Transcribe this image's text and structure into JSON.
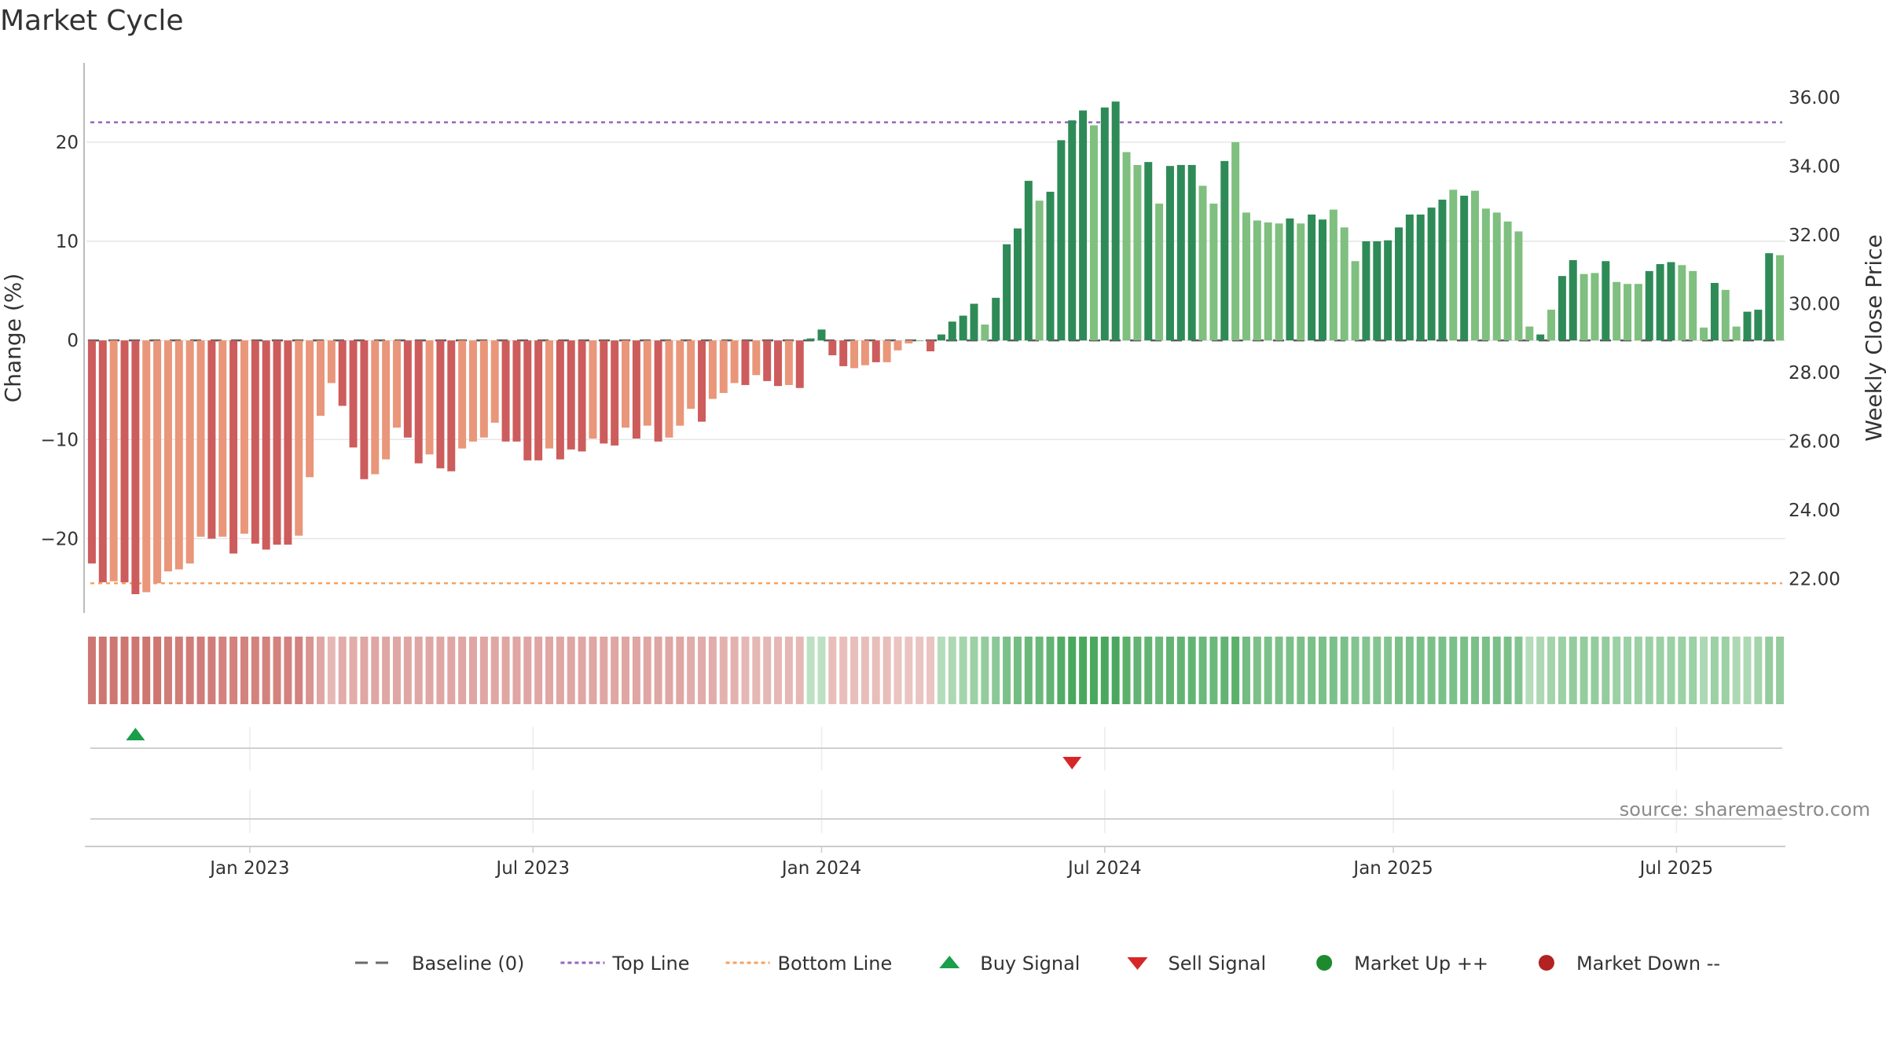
{
  "chart_data": {
    "type": "bar",
    "title": "Market Cycle",
    "ylabel_left": "Change (%)",
    "ylabel_right": "Weekly Close Price",
    "ylim_left": [
      -27.5,
      28
    ],
    "ylim_right": [
      21.0,
      37.0
    ],
    "yticks_left": [
      20,
      10,
      0,
      -10,
      -20
    ],
    "yticks_right": [
      "36.00",
      "34.00",
      "32.00",
      "30.00",
      "28.00",
      "26.00",
      "24.00",
      "22.00"
    ],
    "x_tick_labels": [
      "Jan 2023",
      "Jul 2023",
      "Jan 2024",
      "Jul 2024",
      "Jan 2025",
      "Jul 2025"
    ],
    "x_tick_week_index": [
      15,
      41,
      67.5,
      93.5,
      120,
      146
    ],
    "top_line": 22,
    "bottom_line": -24.5,
    "baseline": 0,
    "grid": true,
    "legend_position": "bottom",
    "series": [
      {
        "values": [
          -22.5,
          -24.4,
          -24.3,
          -24.4,
          -25.6,
          -25.4,
          -24.5,
          -23.3,
          -23.1,
          -22.5,
          -19.8,
          -20.0,
          -19.8,
          -21.5,
          -19.5,
          -20.5,
          -21.1,
          -20.6,
          -20.6,
          -19.7,
          -13.8,
          -7.6,
          -4.3,
          -6.6,
          -10.8,
          -14.0,
          -13.5,
          -12.0,
          -8.8,
          -9.8,
          -12.4,
          -11.5,
          -12.9,
          -13.2,
          -10.9,
          -10.2,
          -9.8,
          -8.3,
          -10.2,
          -10.2,
          -12.1,
          -12.1,
          -10.9,
          -12.0,
          -11.0,
          -11.2,
          -9.9,
          -10.4,
          -10.6,
          -8.8,
          -9.9,
          -8.6,
          -10.2,
          -9.8,
          -8.6,
          -6.9,
          -8.2,
          -5.9,
          -5.3,
          -4.3,
          -4.5,
          -3.5,
          -4.1,
          -4.6,
          -4.5,
          -4.8,
          0.2,
          1.1,
          -1.5,
          -2.6,
          -2.8,
          -2.5,
          -2.2,
          -2.2,
          -1.0,
          -0.3,
          0,
          -1.1,
          0.6,
          1.9,
          2.5,
          3.7,
          1.6,
          4.3,
          9.7,
          11.3,
          16.1,
          14.1,
          15.0,
          20.2,
          22.2,
          23.2,
          21.7,
          23.5,
          24.1,
          19.0,
          17.7,
          18.0,
          13.8,
          17.6,
          17.7,
          17.7,
          15.6,
          13.8,
          18.1,
          20.0,
          12.9,
          12.1,
          11.9,
          11.8,
          12.3,
          11.8,
          12.7,
          12.2,
          13.2,
          11.4,
          8.0,
          10.0,
          10.0,
          10.1,
          11.4,
          12.7,
          12.7,
          13.4,
          14.2,
          15.2,
          14.6,
          15.1,
          13.3,
          12.9,
          12.0,
          11.0,
          1.4,
          0.6,
          3.1,
          6.5,
          8.1,
          6.7,
          6.8,
          8.0,
          5.9,
          5.7,
          5.7,
          7.0,
          7.7,
          7.9,
          7.6,
          7.0,
          1.3,
          5.8,
          5.1,
          1.4,
          2.9,
          3.1,
          8.8,
          8.6
        ],
        "shade": [
          1,
          1,
          0,
          1,
          1,
          0,
          0,
          0,
          0,
          0,
          0,
          1,
          0,
          1,
          0,
          1,
          1,
          1,
          1,
          0,
          0,
          0,
          0,
          1,
          1,
          1,
          0,
          0,
          0,
          1,
          1,
          0,
          1,
          1,
          0,
          0,
          0,
          0,
          1,
          1,
          1,
          1,
          0,
          1,
          1,
          1,
          0,
          1,
          1,
          0,
          1,
          0,
          1,
          0,
          0,
          0,
          1,
          0,
          0,
          0,
          1,
          0,
          1,
          1,
          0,
          1,
          1,
          1,
          1,
          1,
          0,
          0,
          1,
          0,
          0,
          0,
          0,
          1,
          1,
          1,
          1,
          1,
          0,
          1,
          1,
          1,
          1,
          0,
          1,
          1,
          1,
          1,
          0,
          1,
          1,
          0,
          0,
          1,
          0,
          1,
          1,
          1,
          0,
          0,
          1,
          0,
          0,
          0,
          0,
          0,
          1,
          0,
          1,
          1,
          0,
          0,
          0,
          1,
          1,
          1,
          1,
          1,
          1,
          1,
          1,
          0,
          1,
          0,
          0,
          0,
          0,
          0,
          0,
          1,
          0,
          1,
          1,
          0,
          0,
          1,
          0,
          0,
          0,
          1,
          1,
          1,
          0,
          0,
          0,
          1,
          0,
          0,
          1,
          1,
          1,
          0
        ]
      }
    ],
    "state_band": [
      -0.85,
      -0.85,
      -0.85,
      -0.85,
      -0.85,
      -0.85,
      -0.85,
      -0.8,
      -0.8,
      -0.8,
      -0.8,
      -0.8,
      -0.75,
      -0.75,
      -0.75,
      -0.75,
      -0.75,
      -0.75,
      -0.75,
      -0.75,
      -0.6,
      -0.45,
      -0.3,
      -0.4,
      -0.4,
      -0.45,
      -0.45,
      -0.45,
      -0.45,
      -0.45,
      -0.45,
      -0.45,
      -0.45,
      -0.45,
      -0.45,
      -0.45,
      -0.45,
      -0.45,
      -0.45,
      -0.45,
      -0.45,
      -0.45,
      -0.45,
      -0.45,
      -0.45,
      -0.45,
      -0.45,
      -0.45,
      -0.45,
      -0.45,
      -0.45,
      -0.45,
      -0.45,
      -0.45,
      -0.45,
      -0.4,
      -0.4,
      -0.4,
      -0.35,
      -0.35,
      -0.3,
      -0.3,
      -0.3,
      -0.3,
      -0.3,
      -0.3,
      0.2,
      0.2,
      -0.25,
      -0.25,
      -0.25,
      -0.25,
      -0.25,
      -0.25,
      -0.2,
      -0.2,
      -0.2,
      -0.2,
      0.25,
      0.3,
      0.35,
      0.4,
      0.45,
      0.5,
      0.6,
      0.65,
      0.7,
      0.7,
      0.75,
      0.85,
      0.9,
      0.9,
      0.9,
      0.9,
      0.9,
      0.8,
      0.75,
      0.75,
      0.7,
      0.75,
      0.75,
      0.75,
      0.7,
      0.7,
      0.75,
      0.8,
      0.65,
      0.6,
      0.6,
      0.6,
      0.6,
      0.6,
      0.6,
      0.6,
      0.6,
      0.6,
      0.55,
      0.55,
      0.55,
      0.55,
      0.6,
      0.6,
      0.6,
      0.6,
      0.6,
      0.6,
      0.6,
      0.6,
      0.6,
      0.6,
      0.6,
      0.55,
      0.25,
      0.3,
      0.35,
      0.4,
      0.45,
      0.45,
      0.45,
      0.45,
      0.4,
      0.4,
      0.4,
      0.4,
      0.4,
      0.4,
      0.4,
      0.4,
      0.3,
      0.4,
      0.4,
      0.3,
      0.3,
      0.35,
      0.45,
      0.45
    ],
    "buy_signal_week": 4,
    "sell_signal_week": 90,
    "source": "source: sharemaestro.com",
    "legend": [
      {
        "label": "Baseline (0)",
        "kind": "dash",
        "color": "#6b6b6b"
      },
      {
        "label": "Top Line",
        "kind": "dot",
        "color": "#9467bd"
      },
      {
        "label": "Bottom Line",
        "kind": "dot",
        "color": "#f4a261"
      },
      {
        "label": "Buy Signal",
        "kind": "tri-up",
        "color": "#1a9e4a"
      },
      {
        "label": "Sell Signal",
        "kind": "tri-down",
        "color": "#d62728"
      },
      {
        "label": "Market Up ++",
        "kind": "circle",
        "color": "#1e8a2e"
      },
      {
        "label": "Market Down --",
        "kind": "circle",
        "color": "#b22222"
      }
    ]
  },
  "colors": {
    "pos_dark": "#2e8b57",
    "pos_light": "#7fbf7f",
    "neg_dark": "#cd5c5c",
    "neg_light": "#e9967a",
    "top_line": "#9467bd",
    "bottom_line": "#f4a261",
    "grid": "#e6e6e6",
    "axis": "#bbbbbb"
  }
}
